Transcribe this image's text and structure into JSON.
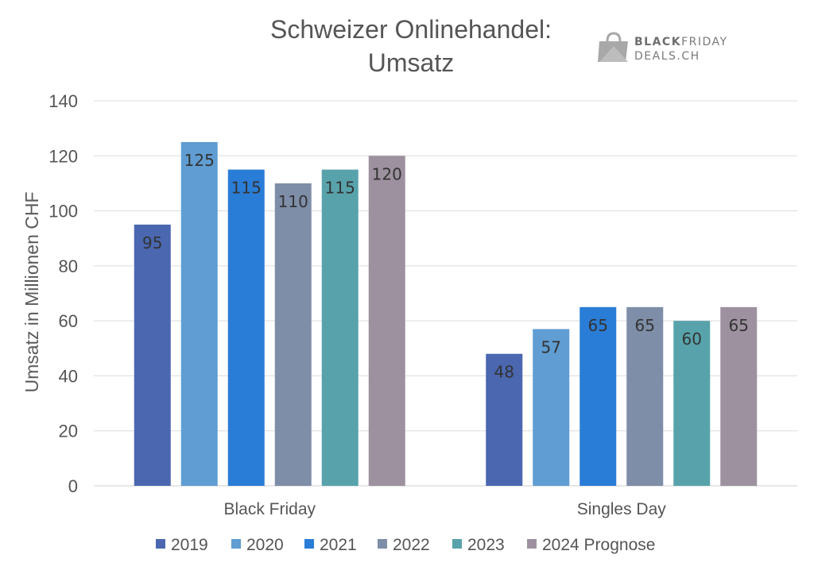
{
  "chart_data": {
    "type": "bar",
    "title": [
      "Schweizer Onlinehandel:",
      "Umsatz"
    ],
    "xlabel": "",
    "ylabel": "Umsatz in Millionen CHF",
    "ylim": [
      0,
      140
    ],
    "yticks": [
      0,
      20,
      40,
      60,
      80,
      100,
      120,
      140
    ],
    "grid": true,
    "legend_position": "bottom",
    "categories": [
      "Black Friday",
      "Singles Day"
    ],
    "series": [
      {
        "name": "2019",
        "values": [
          95,
          48
        ],
        "color": "#4a67b0"
      },
      {
        "name": "2020",
        "values": [
          125,
          57
        ],
        "color": "#5f9dd3"
      },
      {
        "name": "2021",
        "values": [
          115,
          65
        ],
        "color": "#2a7dd6"
      },
      {
        "name": "2022",
        "values": [
          110,
          65
        ],
        "color": "#7e8ea8"
      },
      {
        "name": "2023",
        "values": [
          115,
          60
        ],
        "color": "#58a3ab"
      },
      {
        "name": "2024 Prognose",
        "values": [
          120,
          65
        ],
        "color": "#9d919f"
      }
    ]
  },
  "logo": {
    "line1_bold": "BLACK",
    "line1_rest": "FRIDAY",
    "line2": "DEALS.CH",
    "icon": "shopping-bag-icon"
  }
}
